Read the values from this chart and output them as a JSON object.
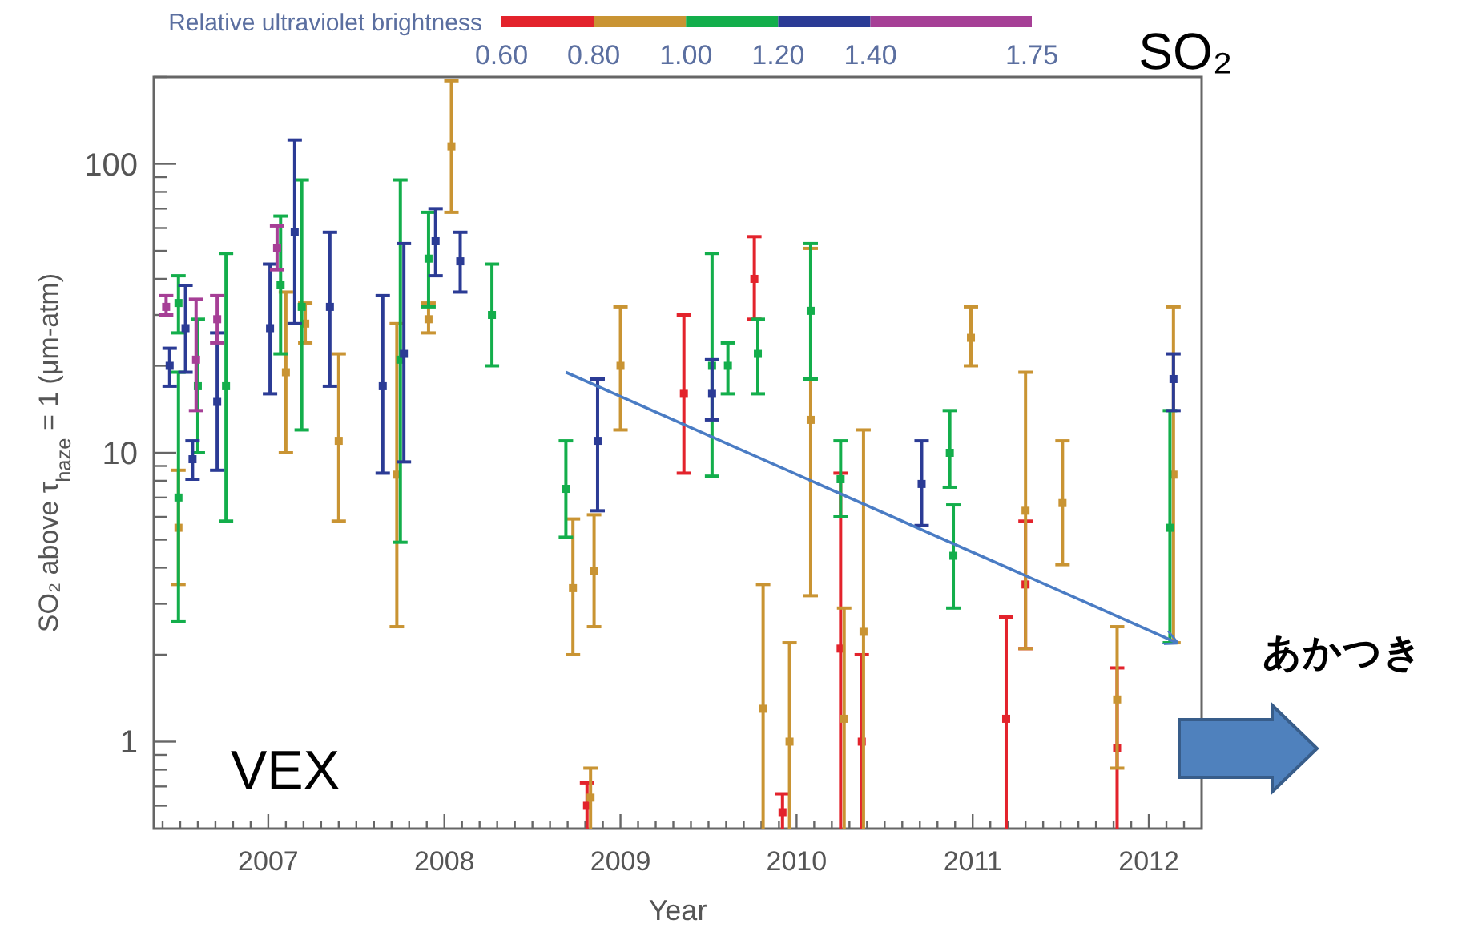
{
  "chart_data": {
    "type": "scatter",
    "xlabel": "Year",
    "ylabel": "SO₂ above τ$_{haze}$ = 1 (μm-atm)",
    "clabel": "Relative ultraviolet brightness",
    "clim": [
      0.6,
      1.75
    ],
    "cticks": [
      {
        "value": 0.6,
        "label": "0.60"
      },
      {
        "value": 0.8,
        "label": "0.80"
      },
      {
        "value": 1.0,
        "label": "1.00"
      },
      {
        "value": 1.2,
        "label": "1.20"
      },
      {
        "value": 1.4,
        "label": "1.40"
      },
      {
        "value": 1.75,
        "label": "1.75"
      }
    ],
    "log": "y",
    "xlim": [
      2006.35,
      2012.3
    ],
    "ylim": [
      0.5,
      200
    ],
    "xticks": [
      {
        "value": 2006.4,
        "label": null
      },
      {
        "value": 2006.5,
        "label": null
      },
      {
        "value": 2006.6,
        "label": null
      },
      {
        "value": 2006.7,
        "label": null
      },
      {
        "value": 2006.8,
        "label": null
      },
      {
        "value": 2006.9,
        "label": null
      },
      2007,
      {
        "value": 2007.1,
        "label": null
      },
      {
        "value": 2007.2,
        "label": null
      },
      {
        "value": 2007.3,
        "label": null
      },
      {
        "value": 2007.4,
        "label": null
      },
      {
        "value": 2007.5,
        "label": null
      },
      {
        "value": 2007.6,
        "label": null
      },
      {
        "value": 2007.7,
        "label": null
      },
      {
        "value": 2007.8,
        "label": null
      },
      {
        "value": 2007.9,
        "label": null
      },
      2008,
      {
        "value": 2008.1,
        "label": null
      },
      {
        "value": 2008.2,
        "label": null
      },
      {
        "value": 2008.3,
        "label": null
      },
      {
        "value": 2008.4,
        "label": null
      },
      {
        "value": 2008.5,
        "label": null
      },
      {
        "value": 2008.6,
        "label": null
      },
      {
        "value": 2008.7,
        "label": null
      },
      {
        "value": 2008.8,
        "label": null
      },
      {
        "value": 2008.9,
        "label": null
      },
      2009,
      {
        "value": 2009.1,
        "label": null
      },
      {
        "value": 2009.2,
        "label": null
      },
      {
        "value": 2009.3,
        "label": null
      },
      {
        "value": 2009.4,
        "label": null
      },
      {
        "value": 2009.5,
        "label": null
      },
      {
        "value": 2009.6,
        "label": null
      },
      {
        "value": 2009.7,
        "label": null
      },
      {
        "value": 2009.8,
        "label": null
      },
      {
        "value": 2009.9,
        "label": null
      },
      2010,
      {
        "value": 2010.1,
        "label": null
      },
      {
        "value": 2010.2,
        "label": null
      },
      {
        "value": 2010.3,
        "label": null
      },
      {
        "value": 2010.4,
        "label": null
      },
      {
        "value": 2010.5,
        "label": null
      },
      {
        "value": 2010.6,
        "label": null
      },
      {
        "value": 2010.7,
        "label": null
      },
      {
        "value": 2010.8,
        "label": null
      },
      {
        "value": 2010.9,
        "label": null
      },
      2011,
      {
        "value": 2011.1,
        "label": null
      },
      {
        "value": 2011.2,
        "label": null
      },
      {
        "value": 2011.3,
        "label": null
      },
      {
        "value": 2011.4,
        "label": null
      },
      {
        "value": 2011.5,
        "label": null
      },
      {
        "value": 2011.6,
        "label": null
      },
      {
        "value": 2011.7,
        "label": null
      },
      {
        "value": 2011.8,
        "label": null
      },
      {
        "value": 2011.9,
        "label": null
      },
      2012,
      {
        "value": 2012.1,
        "label": null
      },
      {
        "value": 2012.2,
        "label": null
      }
    ],
    "yticks": [
      {
        "value": 0.6,
        "label": null
      },
      {
        "value": 0.7,
        "label": null
      },
      {
        "value": 0.8,
        "label": null
      },
      {
        "value": 0.9,
        "label": null
      },
      1,
      {
        "value": 2,
        "label": null
      },
      {
        "value": 3,
        "label": null
      },
      {
        "value": 4,
        "label": null
      },
      {
        "value": 5,
        "label": null
      },
      {
        "value": 6,
        "label": null
      },
      {
        "value": 7,
        "label": null
      },
      {
        "value": 8,
        "label": null
      },
      {
        "value": 9,
        "label": null
      },
      10,
      {
        "value": 20,
        "label": null
      },
      {
        "value": 30,
        "label": null
      },
      {
        "value": 40,
        "label": null
      },
      {
        "value": 50,
        "label": null
      },
      {
        "value": 60,
        "label": null
      },
      {
        "value": 70,
        "label": null
      },
      {
        "value": 80,
        "label": null
      },
      {
        "value": 90,
        "label": null
      },
      100,
      {
        "value": 200,
        "label": null
      }
    ],
    "marker": "square",
    "series": [
      {
        "color": "#e3232c",
        "x": [
          2008.81,
          2009.36,
          2009.76,
          2009.92,
          2010.25,
          2010.37,
          2011.19,
          2011.3,
          2011.82
        ],
        "values": [
          0.6,
          16,
          40,
          0.57,
          2.1,
          1.0,
          1.2,
          3.5,
          0.95
        ],
        "errors": [
          [
            0.5,
            0.72
          ],
          [
            8.5,
            30
          ],
          [
            29,
            56
          ],
          [
            0.5,
            0.66
          ],
          [
            0.5,
            8.5
          ],
          [
            0.5,
            2.0
          ],
          [
            0.5,
            2.7
          ],
          [
            2.1,
            5.8
          ],
          [
            0.5,
            1.8
          ]
        ]
      },
      {
        "color": "#c99433",
        "x": [
          2006.49,
          2007.1,
          2007.21,
          2007.4,
          2007.73,
          2007.91,
          2008.04,
          2008.73,
          2008.85,
          2008.83,
          2009.0,
          2009.81,
          2009.96,
          2010.08,
          2010.27,
          2010.38,
          2010.99,
          2011.3,
          2011.51,
          2011.82,
          2012.14
        ],
        "values": [
          5.5,
          19,
          28,
          11,
          8.4,
          29,
          115,
          3.4,
          3.9,
          0.64,
          20,
          1.3,
          1.0,
          13,
          1.2,
          2.4,
          25,
          6.3,
          6.7,
          1.4,
          8.4
        ],
        "errors": [
          [
            3.5,
            8.7
          ],
          [
            10,
            36
          ],
          [
            24,
            33
          ],
          [
            5.8,
            22
          ],
          [
            2.5,
            28
          ],
          [
            26,
            33
          ],
          [
            68,
            194
          ],
          [
            2.0,
            5.9
          ],
          [
            2.5,
            6.1
          ],
          [
            0.5,
            0.81
          ],
          [
            12,
            32
          ],
          [
            0.5,
            3.5
          ],
          [
            0.5,
            2.2
          ],
          [
            3.2,
            51
          ],
          [
            0.5,
            2.9
          ],
          [
            0.5,
            12
          ],
          [
            20,
            32
          ],
          [
            2.1,
            19
          ],
          [
            4.1,
            11
          ],
          [
            0.81,
            2.5
          ],
          [
            2.2,
            32
          ]
        ]
      },
      {
        "color": "#13ae4b",
        "x": [
          2006.49,
          2006.49,
          2006.6,
          2006.76,
          2007.07,
          2007.19,
          2007.75,
          2007.91,
          2008.27,
          2008.69,
          2009.52,
          2009.61,
          2009.78,
          2010.08,
          2010.25,
          2010.87,
          2010.89,
          2012.12
        ],
        "values": [
          7.0,
          33,
          17,
          17,
          38,
          32,
          21,
          47,
          30,
          7.5,
          20,
          20,
          22,
          31,
          8.1,
          10,
          4.4,
          5.5
        ],
        "errors": [
          [
            2.6,
            19
          ],
          [
            26,
            41
          ],
          [
            10,
            29
          ],
          [
            5.8,
            49
          ],
          [
            22,
            66
          ],
          [
            12,
            88
          ],
          [
            4.9,
            88
          ],
          [
            32,
            68
          ],
          [
            20,
            45
          ],
          [
            5.1,
            11
          ],
          [
            8.3,
            49
          ],
          [
            16,
            24
          ],
          [
            16,
            29
          ],
          [
            18,
            53
          ],
          [
            6.0,
            11
          ],
          [
            7.6,
            14
          ],
          [
            2.9,
            6.6
          ],
          [
            2.2,
            14
          ]
        ]
      },
      {
        "color": "#2b3b95",
        "x": [
          2006.44,
          2006.53,
          2006.57,
          2006.71,
          2007.01,
          2007.15,
          2007.35,
          2007.65,
          2007.77,
          2007.95,
          2008.09,
          2008.87,
          2009.52,
          2010.71,
          2012.14
        ],
        "values": [
          20,
          27,
          9.5,
          15,
          27,
          58,
          32,
          17,
          22,
          54,
          46,
          11,
          16,
          7.8,
          18
        ],
        "errors": [
          [
            17,
            23
          ],
          [
            19,
            38
          ],
          [
            8.1,
            11
          ],
          [
            8.7,
            26
          ],
          [
            16,
            45
          ],
          [
            28,
            121
          ],
          [
            17,
            58
          ],
          [
            8.5,
            35
          ],
          [
            9.3,
            53
          ],
          [
            41,
            70
          ],
          [
            36,
            58
          ],
          [
            6.3,
            18
          ],
          [
            13,
            21
          ],
          [
            5.6,
            11
          ],
          [
            14,
            22
          ]
        ]
      },
      {
        "color": "#a63f96",
        "x": [
          2006.42,
          2006.59,
          2006.71,
          2007.05
        ],
        "values": [
          32,
          21,
          29,
          51
        ],
        "errors": [
          [
            30,
            35
          ],
          [
            14,
            34
          ],
          [
            24,
            35
          ],
          [
            43,
            61
          ]
        ]
      },
      {
        "type": "line",
        "marker": "none",
        "color": "#4a7cc4",
        "line_style": "solid",
        "x": [
          2008.69,
          2012.16
        ],
        "values": [
          19,
          2.2
        ]
      }
    ],
    "annotations": [
      "SO₂",
      "VEX",
      "あかつき"
    ]
  }
}
